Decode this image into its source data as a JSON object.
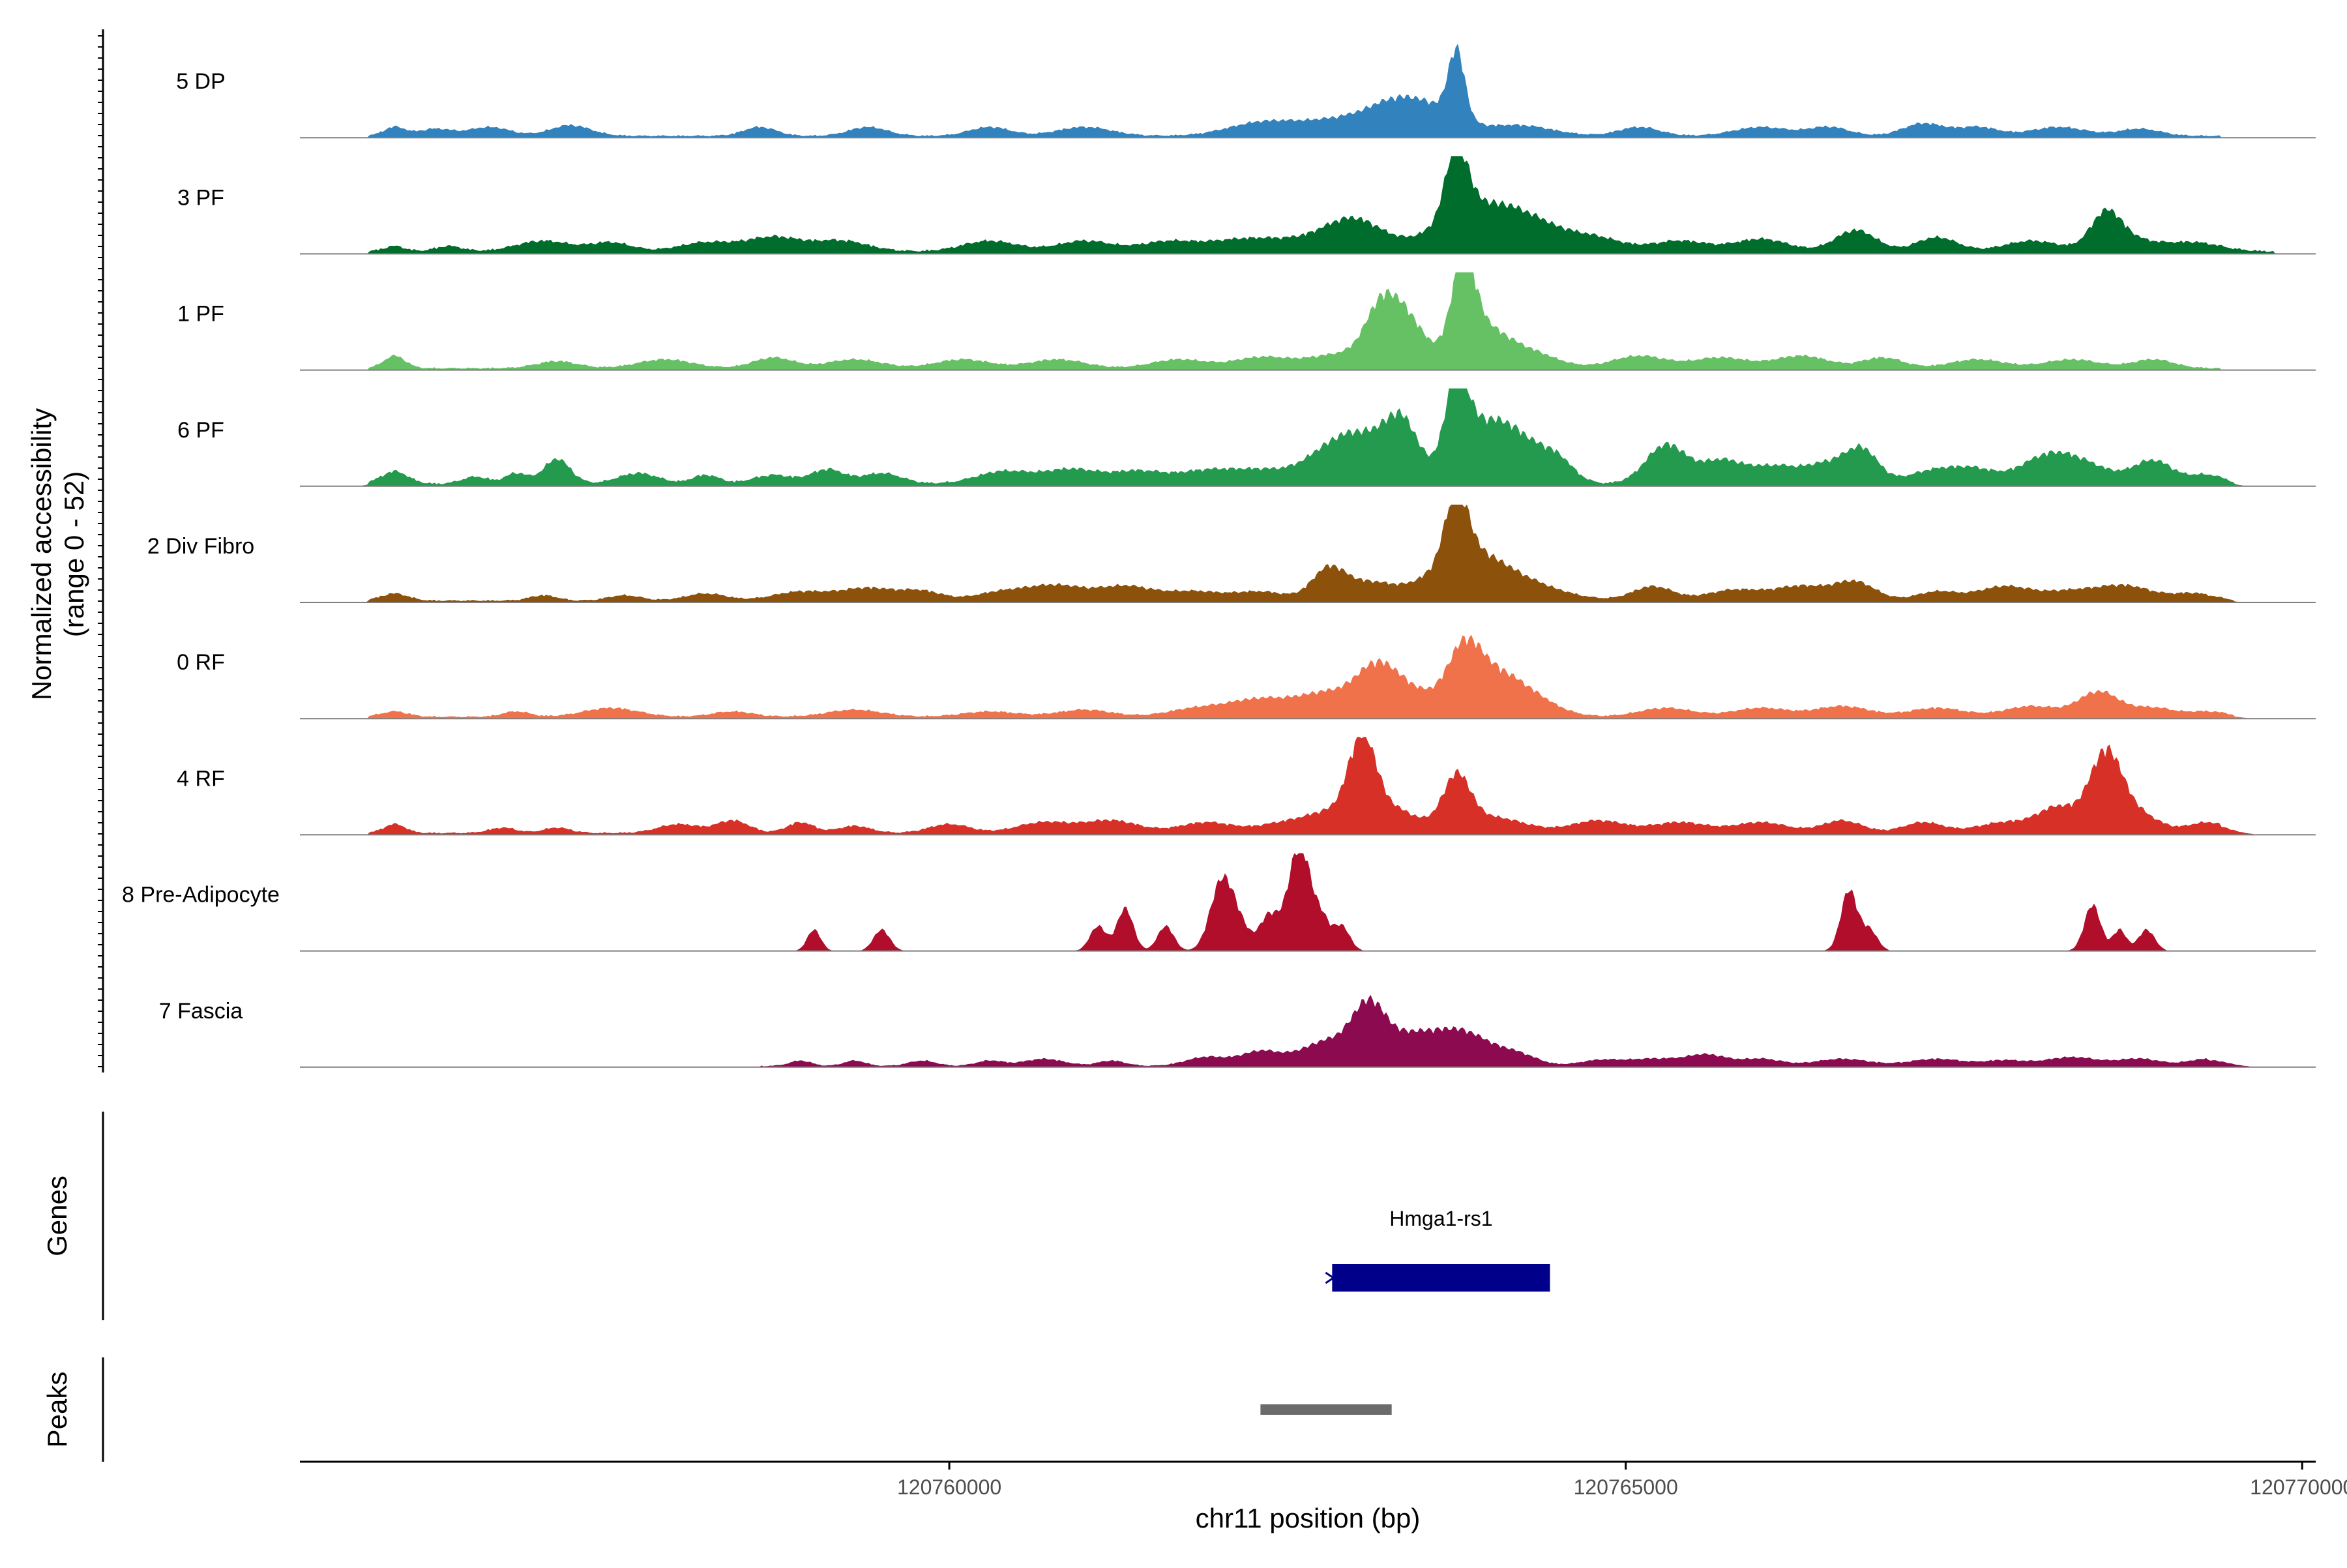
{
  "chart_data": {
    "type": "area",
    "title": "",
    "xlabel": "chr11 position (bp)",
    "ylabel": "Normalized accessibility\n(range 0 - 52)",
    "ylim": [
      0,
      52
    ],
    "xlim": [
      120755200,
      120770100
    ],
    "x_ticks": [
      120760000,
      120765000,
      120770000
    ],
    "x_tick_labels": [
      "120760000",
      "120765000",
      "120770000"
    ],
    "tracks": [
      {
        "name": "5 DP",
        "color": "#3182BD",
        "peaks": [
          [
            120755900,
            80,
            5
          ],
          [
            120756200,
            120,
            4
          ],
          [
            120756600,
            150,
            5
          ],
          [
            120757200,
            150,
            6
          ],
          [
            120758600,
            120,
            5
          ],
          [
            120759400,
            140,
            5
          ],
          [
            120760300,
            150,
            5
          ],
          [
            120761000,
            200,
            5
          ],
          [
            120762300,
            250,
            7
          ],
          [
            120762900,
            300,
            9
          ],
          [
            120763300,
            200,
            14
          ],
          [
            120763750,
            60,
            38
          ],
          [
            120763600,
            200,
            12
          ],
          [
            120764200,
            250,
            6
          ],
          [
            120765100,
            150,
            5
          ],
          [
            120766000,
            200,
            5
          ],
          [
            120766500,
            150,
            5
          ],
          [
            120767200,
            150,
            7
          ],
          [
            120767600,
            150,
            5
          ],
          [
            120768200,
            200,
            5
          ],
          [
            120768800,
            150,
            4
          ]
        ],
        "base": [
          120755700,
          120769400,
          1.5
        ]
      },
      {
        "name": "3 PF",
        "color": "#006D2C",
        "peaks": [
          [
            120755900,
            80,
            3
          ],
          [
            120756300,
            100,
            3
          ],
          [
            120757000,
            200,
            6
          ],
          [
            120757500,
            150,
            5
          ],
          [
            120758200,
            200,
            5
          ],
          [
            120758700,
            200,
            8
          ],
          [
            120759200,
            200,
            6
          ],
          [
            120760300,
            200,
            6
          ],
          [
            120761000,
            200,
            6
          ],
          [
            120761600,
            200,
            5
          ],
          [
            120762200,
            300,
            7
          ],
          [
            120762900,
            300,
            8
          ],
          [
            120763000,
            200,
            11
          ],
          [
            120763750,
            80,
            40
          ],
          [
            120763800,
            250,
            16
          ],
          [
            120764200,
            300,
            20
          ],
          [
            120764800,
            200,
            6
          ],
          [
            120765400,
            200,
            6
          ],
          [
            120766000,
            200,
            7
          ],
          [
            120766700,
            150,
            12
          ],
          [
            120767300,
            150,
            8
          ],
          [
            120768000,
            200,
            6
          ],
          [
            120768550,
            110,
            18
          ],
          [
            120768700,
            200,
            7
          ],
          [
            120769200,
            200,
            5
          ]
        ],
        "base": [
          120755700,
          120769800,
          2
        ]
      },
      {
        "name": "1 PF",
        "color": "#66C164",
        "peaks": [
          [
            120755900,
            80,
            7
          ],
          [
            120757100,
            150,
            4
          ],
          [
            120757900,
            200,
            5
          ],
          [
            120758700,
            150,
            6
          ],
          [
            120759300,
            200,
            5
          ],
          [
            120760100,
            200,
            5
          ],
          [
            120760800,
            200,
            5
          ],
          [
            120761700,
            200,
            5
          ],
          [
            120762300,
            200,
            6
          ],
          [
            120762900,
            250,
            8
          ],
          [
            120763200,
            120,
            32
          ],
          [
            120763400,
            120,
            22
          ],
          [
            120763800,
            80,
            46
          ],
          [
            120763900,
            200,
            24
          ],
          [
            120764300,
            200,
            8
          ],
          [
            120765100,
            200,
            7
          ],
          [
            120765700,
            200,
            6
          ],
          [
            120766300,
            200,
            7
          ],
          [
            120766900,
            150,
            6
          ],
          [
            120767600,
            200,
            5
          ],
          [
            120768300,
            200,
            5
          ],
          [
            120768900,
            150,
            5
          ]
        ],
        "base": [
          120755700,
          120769400,
          1.5
        ]
      },
      {
        "name": "6 PF",
        "color": "#239A4D",
        "peaks": [
          [
            120755900,
            100,
            7
          ],
          [
            120756500,
            100,
            4
          ],
          [
            120756800,
            80,
            6
          ],
          [
            120757100,
            100,
            14
          ],
          [
            120757700,
            150,
            6
          ],
          [
            120758200,
            100,
            5
          ],
          [
            120758700,
            150,
            5
          ],
          [
            120759100,
            120,
            8
          ],
          [
            120759500,
            150,
            6
          ],
          [
            120760400,
            200,
            7
          ],
          [
            120760900,
            200,
            8
          ],
          [
            120761400,
            200,
            7
          ],
          [
            120761900,
            200,
            7
          ],
          [
            120762300,
            200,
            7
          ],
          [
            120762800,
            200,
            16
          ],
          [
            120763100,
            200,
            22
          ],
          [
            120763350,
            120,
            28
          ],
          [
            120763750,
            80,
            45
          ],
          [
            120763900,
            200,
            26
          ],
          [
            120764200,
            200,
            22
          ],
          [
            120764500,
            120,
            10
          ],
          [
            120765300,
            150,
            22
          ],
          [
            120765700,
            150,
            12
          ],
          [
            120766100,
            200,
            10
          ],
          [
            120766500,
            150,
            10
          ],
          [
            120766750,
            120,
            18
          ],
          [
            120767300,
            200,
            8
          ],
          [
            120767600,
            150,
            6
          ],
          [
            120768100,
            200,
            14
          ],
          [
            120768400,
            200,
            9
          ],
          [
            120768900,
            150,
            13
          ],
          [
            120769300,
            120,
            5
          ]
        ],
        "base": [
          120755700,
          120769500,
          2
        ]
      },
      {
        "name": "2 Div Fibro",
        "color": "#8C510A",
        "peaks": [
          [
            120755900,
            100,
            4
          ],
          [
            120757000,
            100,
            3
          ],
          [
            120757600,
            120,
            3
          ],
          [
            120758200,
            150,
            4
          ],
          [
            120758900,
            200,
            5
          ],
          [
            120759400,
            200,
            7
          ],
          [
            120759800,
            150,
            5
          ],
          [
            120760400,
            200,
            5
          ],
          [
            120760800,
            200,
            8
          ],
          [
            120761300,
            200,
            8
          ],
          [
            120761800,
            200,
            5
          ],
          [
            120762300,
            200,
            5
          ],
          [
            120762800,
            120,
            16
          ],
          [
            120763100,
            200,
            10
          ],
          [
            120763750,
            80,
            38
          ],
          [
            120763800,
            250,
            24
          ],
          [
            120764200,
            300,
            10
          ],
          [
            120765200,
            150,
            8
          ],
          [
            120765800,
            200,
            6
          ],
          [
            120766300,
            200,
            8
          ],
          [
            120766700,
            150,
            10
          ],
          [
            120767300,
            150,
            5
          ],
          [
            120767800,
            200,
            8
          ],
          [
            120768300,
            200,
            5
          ],
          [
            120768700,
            200,
            8
          ],
          [
            120769200,
            150,
            4
          ]
        ],
        "base": [
          120755700,
          120769500,
          1.5
        ]
      },
      {
        "name": "0 RF",
        "color": "#F0724A",
        "peaks": [
          [
            120755900,
            100,
            3
          ],
          [
            120756800,
            100,
            3
          ],
          [
            120757500,
            200,
            5
          ],
          [
            120758400,
            150,
            3
          ],
          [
            120759300,
            200,
            4
          ],
          [
            120760300,
            200,
            3
          ],
          [
            120761000,
            200,
            4
          ],
          [
            120761800,
            200,
            4
          ],
          [
            120762300,
            250,
            10
          ],
          [
            120762800,
            200,
            12
          ],
          [
            120763150,
            150,
            22
          ],
          [
            120763400,
            200,
            14
          ],
          [
            120763800,
            120,
            28
          ],
          [
            120764000,
            200,
            22
          ],
          [
            120764300,
            200,
            9
          ],
          [
            120765300,
            200,
            5
          ],
          [
            120766000,
            200,
            5
          ],
          [
            120766600,
            200,
            6
          ],
          [
            120767300,
            200,
            5
          ],
          [
            120768000,
            200,
            6
          ],
          [
            120768500,
            150,
            14
          ],
          [
            120768900,
            150,
            5
          ],
          [
            120769300,
            150,
            3
          ]
        ],
        "base": [
          120755700,
          120769500,
          1.5
        ]
      },
      {
        "name": "4 RF",
        "color": "#D73027",
        "peaks": [
          [
            120755900,
            80,
            5
          ],
          [
            120756700,
            100,
            3
          ],
          [
            120757100,
            100,
            3
          ],
          [
            120758000,
            150,
            5
          ],
          [
            120758400,
            120,
            7
          ],
          [
            120758900,
            100,
            6
          ],
          [
            120759300,
            120,
            4
          ],
          [
            120760000,
            150,
            5
          ],
          [
            120760700,
            200,
            6
          ],
          [
            120761200,
            200,
            7
          ],
          [
            120761900,
            200,
            6
          ],
          [
            120762500,
            200,
            6
          ],
          [
            120762800,
            150,
            9
          ],
          [
            120763050,
            100,
            46
          ],
          [
            120763250,
            200,
            14
          ],
          [
            120763750,
            100,
            28
          ],
          [
            120764000,
            250,
            9
          ],
          [
            120764800,
            200,
            7
          ],
          [
            120765400,
            200,
            6
          ],
          [
            120766000,
            200,
            6
          ],
          [
            120766600,
            150,
            7
          ],
          [
            120767200,
            150,
            6
          ],
          [
            120767800,
            200,
            6
          ],
          [
            120768200,
            150,
            14
          ],
          [
            120768550,
            120,
            44
          ],
          [
            120768800,
            150,
            10
          ],
          [
            120769300,
            150,
            6
          ]
        ],
        "base": [
          120755700,
          120769400,
          1.5
        ]
      },
      {
        "name": "8 Pre-Adipocyte",
        "color": "#B10E2C",
        "peaks": [
          [
            120759000,
            50,
            12
          ],
          [
            120759500,
            60,
            12
          ],
          [
            120761100,
            60,
            14
          ],
          [
            120761300,
            60,
            24
          ],
          [
            120761600,
            60,
            14
          ],
          [
            120762000,
            80,
            28
          ],
          [
            120762100,
            100,
            20
          ],
          [
            120762350,
            60,
            14
          ],
          [
            120762600,
            70,
            50
          ],
          [
            120762500,
            100,
            18
          ],
          [
            120762750,
            60,
            18
          ],
          [
            120762900,
            60,
            14
          ],
          [
            120766650,
            60,
            34
          ],
          [
            120766800,
            60,
            12
          ],
          [
            120768450,
            60,
            26
          ],
          [
            120768650,
            50,
            12
          ],
          [
            120768850,
            60,
            12
          ]
        ],
        "base": [
          120759000,
          120759000,
          0
        ]
      },
      {
        "name": "7 Fascia",
        "color": "#8B0A50",
        "peaks": [
          [
            120758900,
            80,
            3
          ],
          [
            120759300,
            80,
            3
          ],
          [
            120759800,
            100,
            3
          ],
          [
            120760300,
            100,
            3
          ],
          [
            120760700,
            150,
            4
          ],
          [
            120761200,
            100,
            3
          ],
          [
            120761900,
            150,
            5
          ],
          [
            120762300,
            150,
            8
          ],
          [
            120762800,
            200,
            14
          ],
          [
            120763100,
            120,
            28
          ],
          [
            120763400,
            200,
            16
          ],
          [
            120763800,
            200,
            18
          ],
          [
            120764200,
            150,
            6
          ],
          [
            120764800,
            150,
            3
          ],
          [
            120765200,
            200,
            4
          ],
          [
            120765600,
            150,
            6
          ],
          [
            120766000,
            150,
            4
          ],
          [
            120766600,
            200,
            4
          ],
          [
            120767300,
            200,
            4
          ],
          [
            120767800,
            150,
            3
          ],
          [
            120768300,
            200,
            5
          ],
          [
            120768800,
            150,
            4
          ],
          [
            120769300,
            150,
            4
          ]
        ],
        "base": [
          120758600,
          120769300,
          1
        ]
      }
    ],
    "genes_label": "Genes",
    "peaks_label": "Peaks",
    "genes": [
      {
        "name": "Hmga1-rs1",
        "start": 120762830,
        "end": 120764440,
        "color": "#00008B",
        "strand": "-"
      }
    ],
    "peak_regions": [
      {
        "start": 120762300,
        "end": 120763270,
        "color": "#6B6B6B"
      }
    ]
  }
}
